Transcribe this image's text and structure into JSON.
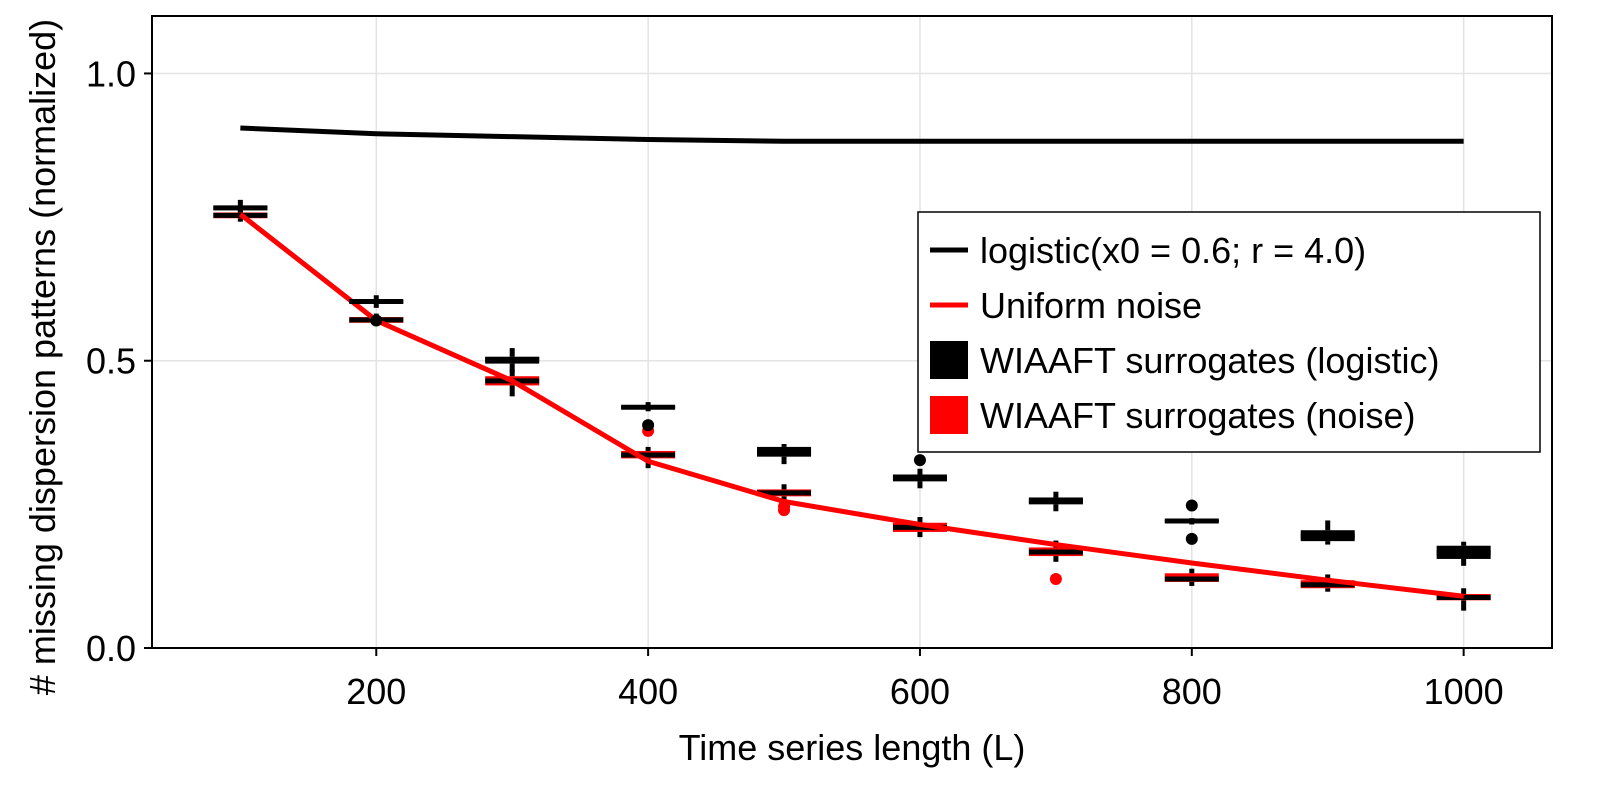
{
  "chart_data": {
    "type": "line",
    "title": "",
    "xlabel": "Time series length (L)",
    "ylabel": "# missing dispersion patterns (normalized)",
    "xlim": [
      35,
      1065
    ],
    "ylim": [
      0.0,
      1.1
    ],
    "xticks": [
      200,
      400,
      600,
      800,
      1000
    ],
    "yticks": [
      0.0,
      0.5,
      1.0
    ],
    "xtick_labels": [
      "200",
      "400",
      "600",
      "800",
      "1000"
    ],
    "ytick_labels": [
      "0.0",
      "0.5",
      "1.0"
    ],
    "grid": true,
    "legend_position": "right",
    "series": [
      {
        "name": "logistic(x0 = 0.6; r = 4.0)",
        "kind": "line",
        "color": "#000000",
        "x": [
          100,
          200,
          300,
          400,
          500,
          600,
          700,
          800,
          900,
          1000
        ],
        "y": [
          0.905,
          0.895,
          0.89,
          0.885,
          0.882,
          0.882,
          0.882,
          0.882,
          0.882,
          0.882
        ]
      },
      {
        "name": "Uniform noise",
        "kind": "line",
        "color": "#ff0000",
        "x": [
          100,
          200,
          300,
          400,
          500,
          600,
          700,
          800,
          900,
          1000
        ],
        "y": [
          0.755,
          0.57,
          0.465,
          0.325,
          0.255,
          0.215,
          0.18,
          0.148,
          0.118,
          0.09
        ]
      },
      {
        "name": "WIAAFT surrogates (logistic)",
        "kind": "boxplot",
        "color": "#000000",
        "boxes": [
          {
            "x": 100,
            "q1": 0.762,
            "median": 0.766,
            "q3": 0.77,
            "whisker_low": 0.758,
            "whisker_high": 0.78,
            "outliers": []
          },
          {
            "x": 200,
            "q1": 0.6,
            "median": 0.603,
            "q3": 0.606,
            "whisker_low": 0.592,
            "whisker_high": 0.614,
            "outliers": [
              0.57
            ]
          },
          {
            "x": 300,
            "q1": 0.495,
            "median": 0.502,
            "q3": 0.507,
            "whisker_low": 0.48,
            "whisker_high": 0.522,
            "outliers": []
          },
          {
            "x": 400,
            "q1": 0.417,
            "median": 0.419,
            "q3": 0.421,
            "whisker_low": 0.412,
            "whisker_high": 0.428,
            "outliers": [
              0.388
            ]
          },
          {
            "x": 500,
            "q1": 0.333,
            "median": 0.34,
            "q3": 0.35,
            "whisker_low": 0.32,
            "whisker_high": 0.355,
            "outliers": []
          },
          {
            "x": 600,
            "q1": 0.29,
            "median": 0.296,
            "q3": 0.302,
            "whisker_low": 0.278,
            "whisker_high": 0.312,
            "outliers": [
              0.327
            ]
          },
          {
            "x": 700,
            "q1": 0.25,
            "median": 0.256,
            "q3": 0.262,
            "whisker_low": 0.238,
            "whisker_high": 0.272,
            "outliers": []
          },
          {
            "x": 800,
            "q1": 0.219,
            "median": 0.221,
            "q3": 0.223,
            "whisker_low": 0.215,
            "whisker_high": 0.226,
            "outliers": [
              0.248,
              0.19
            ]
          },
          {
            "x": 900,
            "q1": 0.186,
            "median": 0.195,
            "q3": 0.205,
            "whisker_low": 0.18,
            "whisker_high": 0.222,
            "outliers": []
          },
          {
            "x": 1000,
            "q1": 0.155,
            "median": 0.166,
            "q3": 0.178,
            "whisker_low": 0.143,
            "whisker_high": 0.185,
            "outliers": []
          }
        ]
      },
      {
        "name": "WIAAFT surrogates (noise)",
        "kind": "boxplot",
        "color": "#ff0000",
        "boxes": [
          {
            "x": 100,
            "q1": 0.748,
            "median": 0.753,
            "q3": 0.758,
            "whisker_low": 0.742,
            "whisker_high": 0.765,
            "outliers": []
          },
          {
            "x": 200,
            "q1": 0.566,
            "median": 0.571,
            "q3": 0.576,
            "whisker_low": 0.562,
            "whisker_high": 0.582,
            "outliers": []
          },
          {
            "x": 300,
            "q1": 0.457,
            "median": 0.465,
            "q3": 0.473,
            "whisker_low": 0.438,
            "whisker_high": 0.485,
            "outliers": []
          },
          {
            "x": 400,
            "q1": 0.33,
            "median": 0.336,
            "q3": 0.343,
            "whisker_low": 0.313,
            "whisker_high": 0.35,
            "outliers": [
              0.378
            ]
          },
          {
            "x": 500,
            "q1": 0.264,
            "median": 0.27,
            "q3": 0.276,
            "whisker_low": 0.258,
            "whisker_high": 0.285,
            "outliers": [
              0.24,
              0.246
            ]
          },
          {
            "x": 600,
            "q1": 0.202,
            "median": 0.21,
            "q3": 0.218,
            "whisker_low": 0.193,
            "whisker_high": 0.228,
            "outliers": []
          },
          {
            "x": 700,
            "q1": 0.16,
            "median": 0.167,
            "q3": 0.175,
            "whisker_low": 0.15,
            "whisker_high": 0.187,
            "outliers": [
              0.12
            ]
          },
          {
            "x": 800,
            "q1": 0.115,
            "median": 0.12,
            "q3": 0.13,
            "whisker_low": 0.108,
            "whisker_high": 0.138,
            "outliers": []
          },
          {
            "x": 900,
            "q1": 0.104,
            "median": 0.11,
            "q3": 0.118,
            "whisker_low": 0.098,
            "whisker_high": 0.128,
            "outliers": []
          },
          {
            "x": 1000,
            "q1": 0.083,
            "median": 0.088,
            "q3": 0.094,
            "whisker_low": 0.065,
            "whisker_high": 0.104,
            "outliers": []
          }
        ]
      }
    ]
  }
}
